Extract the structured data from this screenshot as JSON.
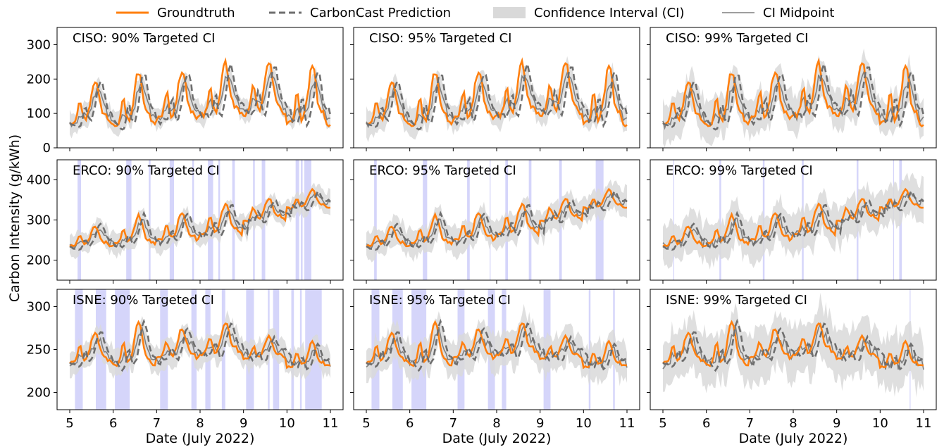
{
  "legend": {
    "entries": [
      {
        "label": "Groundtruth",
        "color": "#ff7f0e",
        "style": "solid-thick"
      },
      {
        "label": "CarbonCast Prediction",
        "color": "#6e6e6e",
        "style": "dashed"
      },
      {
        "label": "Confidence Interval (CI)",
        "color": "#d9d9d9",
        "style": "band"
      },
      {
        "label": "CI Midpoint",
        "color": "#7f7f7f",
        "style": "solid-thin"
      }
    ],
    "placement": "top-center"
  },
  "ylabel": "Carbon Intensity (g/kWh)",
  "xlabel": "Date (July 2022)",
  "colors": {
    "groundtruth": "#ff7f0e",
    "prediction": "#6e6e6e",
    "ci_band": "#d9d9d9",
    "midpoint": "#7f7f7f",
    "violation": "#b3b3f5"
  },
  "chart_data": [
    {
      "type": "line",
      "title": "CISO: 90% Targeted CI",
      "region": "CISO",
      "target": "90%",
      "xlim": [
        5,
        11
      ],
      "ylim": [
        0,
        350
      ],
      "yticks": [
        0,
        100,
        200,
        300
      ],
      "xticks": [
        5,
        6,
        7,
        8,
        9,
        10,
        11
      ],
      "grid": false,
      "daily": [
        {
          "min": 75,
          "max": 195
        },
        {
          "min": 70,
          "max": 220
        },
        {
          "min": 85,
          "max": 225
        },
        {
          "min": 95,
          "max": 245
        },
        {
          "min": 100,
          "max": 248
        },
        {
          "min": 70,
          "max": 235
        }
      ],
      "ci_halfwidth": 30,
      "violations": []
    },
    {
      "type": "line",
      "title": "CISO: 95% Targeted CI",
      "region": "CISO",
      "target": "95%",
      "xlim": [
        5,
        11
      ],
      "ylim": [
        0,
        350
      ],
      "yticks": [
        0,
        100,
        200,
        300
      ],
      "xticks": [
        5,
        6,
        7,
        8,
        9,
        10,
        11
      ],
      "grid": false,
      "daily": [
        {
          "min": 75,
          "max": 195
        },
        {
          "min": 70,
          "max": 220
        },
        {
          "min": 85,
          "max": 225
        },
        {
          "min": 95,
          "max": 245
        },
        {
          "min": 100,
          "max": 248
        },
        {
          "min": 70,
          "max": 235
        }
      ],
      "ci_halfwidth": 38,
      "violations": []
    },
    {
      "type": "line",
      "title": "CISO: 99% Targeted CI",
      "region": "CISO",
      "target": "99%",
      "xlim": [
        5,
        11
      ],
      "ylim": [
        0,
        350
      ],
      "yticks": [
        0,
        100,
        200,
        300
      ],
      "xticks": [
        5,
        6,
        7,
        8,
        9,
        10,
        11
      ],
      "grid": false,
      "daily": [
        {
          "min": 75,
          "max": 195
        },
        {
          "min": 70,
          "max": 220
        },
        {
          "min": 85,
          "max": 225
        },
        {
          "min": 95,
          "max": 245
        },
        {
          "min": 100,
          "max": 248
        },
        {
          "min": 70,
          "max": 235
        }
      ],
      "ci_halfwidth": 55,
      "violations": []
    },
    {
      "type": "line",
      "title": "ERCO: 90% Targeted CI",
      "region": "ERCO",
      "target": "90%",
      "xlim": [
        5,
        11
      ],
      "ylim": [
        150,
        450
      ],
      "yticks": [
        200,
        300,
        400
      ],
      "xticks": [
        5,
        6,
        7,
        8,
        9,
        10,
        11
      ],
      "grid": false,
      "daily": [
        {
          "min": 235,
          "max": 285
        },
        {
          "min": 240,
          "max": 310
        },
        {
          "min": 250,
          "max": 320
        },
        {
          "min": 265,
          "max": 340
        },
        {
          "min": 300,
          "max": 355
        },
        {
          "min": 330,
          "max": 375
        }
      ],
      "ci_halfwidth": 28,
      "violations": [
        [
          5.18,
          5.26
        ],
        [
          6.3,
          6.42
        ],
        [
          6.82,
          6.86
        ],
        [
          7.3,
          7.4
        ],
        [
          7.82,
          7.86
        ],
        [
          8.18,
          8.3
        ],
        [
          8.42,
          8.46
        ],
        [
          8.74,
          8.8
        ],
        [
          9.22,
          9.26
        ],
        [
          9.42,
          9.5
        ],
        [
          10.2,
          10.28
        ],
        [
          10.32,
          10.36
        ],
        [
          10.4,
          10.56
        ]
      ]
    },
    {
      "type": "line",
      "title": "ERCO: 95% Targeted CI",
      "region": "ERCO",
      "target": "95%",
      "xlim": [
        5,
        11
      ],
      "ylim": [
        150,
        450
      ],
      "yticks": [
        200,
        300,
        400
      ],
      "xticks": [
        5,
        6,
        7,
        8,
        9,
        10,
        11
      ],
      "grid": false,
      "daily": [
        {
          "min": 235,
          "max": 285
        },
        {
          "min": 240,
          "max": 310
        },
        {
          "min": 250,
          "max": 320
        },
        {
          "min": 265,
          "max": 340
        },
        {
          "min": 300,
          "max": 355
        },
        {
          "min": 330,
          "max": 375
        }
      ],
      "ci_halfwidth": 35,
      "violations": [
        [
          5.18,
          5.24
        ],
        [
          6.3,
          6.4
        ],
        [
          7.32,
          7.38
        ],
        [
          7.84,
          7.86
        ],
        [
          8.2,
          8.26
        ],
        [
          8.74,
          8.8
        ],
        [
          9.44,
          9.5
        ],
        [
          10.28,
          10.46
        ]
      ]
    },
    {
      "type": "line",
      "title": "ERCO: 99% Targeted CI",
      "region": "ERCO",
      "target": "99%",
      "xlim": [
        5,
        11
      ],
      "ylim": [
        150,
        450
      ],
      "yticks": [
        200,
        300,
        400
      ],
      "xticks": [
        5,
        6,
        7,
        8,
        9,
        10,
        11
      ],
      "grid": false,
      "daily": [
        {
          "min": 235,
          "max": 285
        },
        {
          "min": 240,
          "max": 310
        },
        {
          "min": 250,
          "max": 320
        },
        {
          "min": 265,
          "max": 340
        },
        {
          "min": 300,
          "max": 355
        },
        {
          "min": 330,
          "max": 375
        }
      ],
      "ci_halfwidth": 50,
      "violations": [
        [
          5.24,
          5.26
        ],
        [
          6.3,
          6.34
        ],
        [
          7.3,
          7.34
        ],
        [
          8.2,
          8.24
        ],
        [
          9.46,
          9.5
        ],
        [
          10.3,
          10.32
        ],
        [
          10.44,
          10.5
        ]
      ]
    },
    {
      "type": "line",
      "title": "ISNE: 90% Targeted CI",
      "region": "ISNE",
      "target": "90%",
      "xlim": [
        5,
        11
      ],
      "ylim": [
        180,
        320
      ],
      "yticks": [
        200,
        250,
        300
      ],
      "xticks": [
        5,
        6,
        7,
        8,
        9,
        10,
        11
      ],
      "grid": false,
      "daily": [
        {
          "min": 235,
          "max": 270
        },
        {
          "min": 232,
          "max": 280
        },
        {
          "min": 240,
          "max": 275
        },
        {
          "min": 245,
          "max": 282
        },
        {
          "min": 240,
          "max": 265
        },
        {
          "min": 230,
          "max": 258
        }
      ],
      "ci_halfwidth": 16,
      "violations": [
        [
          5.12,
          5.3
        ],
        [
          5.6,
          5.84
        ],
        [
          6.04,
          6.38
        ],
        [
          7.08,
          7.26
        ],
        [
          7.8,
          7.92
        ],
        [
          8.12,
          8.24
        ],
        [
          8.5,
          8.58
        ],
        [
          9.06,
          9.24
        ],
        [
          9.56,
          9.6
        ],
        [
          9.68,
          9.82
        ],
        [
          10.1,
          10.16
        ],
        [
          10.3,
          10.34
        ],
        [
          10.42,
          10.8
        ]
      ]
    },
    {
      "type": "line",
      "title": "ISNE: 95% Targeted CI",
      "region": "ISNE",
      "target": "95%",
      "xlim": [
        5,
        11
      ],
      "ylim": [
        180,
        320
      ],
      "yticks": [
        200,
        250,
        300
      ],
      "xticks": [
        5,
        6,
        7,
        8,
        9,
        10,
        11
      ],
      "grid": false,
      "daily": [
        {
          "min": 235,
          "max": 270
        },
        {
          "min": 232,
          "max": 280
        },
        {
          "min": 240,
          "max": 275
        },
        {
          "min": 245,
          "max": 282
        },
        {
          "min": 240,
          "max": 265
        },
        {
          "min": 230,
          "max": 258
        }
      ],
      "ci_halfwidth": 21,
      "violations": [
        [
          5.12,
          5.3
        ],
        [
          5.6,
          5.84
        ],
        [
          6.04,
          6.38
        ],
        [
          7.1,
          7.26
        ],
        [
          7.8,
          7.96
        ],
        [
          8.12,
          8.22
        ],
        [
          9.08,
          9.24
        ],
        [
          10.12,
          10.16
        ],
        [
          10.68,
          10.72
        ]
      ]
    },
    {
      "type": "line",
      "title": "ISNE: 99% Targeted CI",
      "region": "ISNE",
      "target": "99%",
      "xlim": [
        5,
        11
      ],
      "ylim": [
        180,
        320
      ],
      "yticks": [
        200,
        250,
        300
      ],
      "xticks": [
        5,
        6,
        7,
        8,
        9,
        10,
        11
      ],
      "grid": false,
      "daily": [
        {
          "min": 235,
          "max": 270
        },
        {
          "min": 232,
          "max": 280
        },
        {
          "min": 240,
          "max": 275
        },
        {
          "min": 245,
          "max": 282
        },
        {
          "min": 240,
          "max": 265
        },
        {
          "min": 230,
          "max": 258
        }
      ],
      "ci_halfwidth": 30,
      "violations": [
        [
          10.68,
          10.7
        ]
      ]
    }
  ]
}
